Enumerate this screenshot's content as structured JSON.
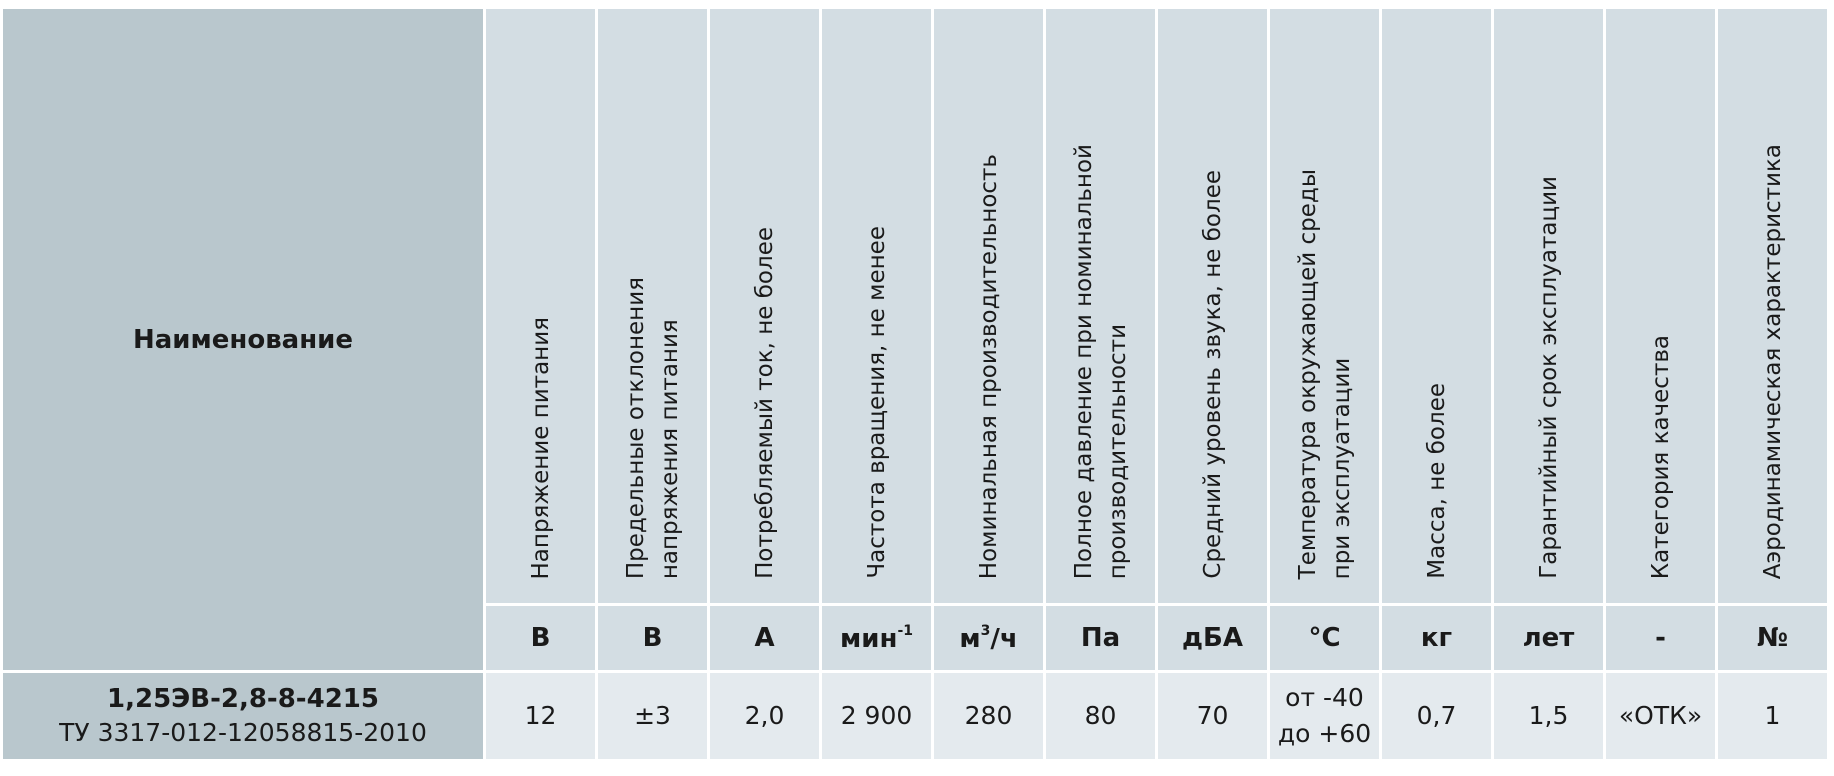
{
  "table": {
    "name_header": "Наименование",
    "columns": [
      {
        "header_lines": [
          "Напряжение питания"
        ],
        "unit": "В",
        "value_lines": [
          "12"
        ]
      },
      {
        "header_lines": [
          "Предельные отклонения",
          "напряжения питания"
        ],
        "unit": "В",
        "value_lines": [
          "±3"
        ]
      },
      {
        "header_lines": [
          "Потребляемый ток, не более"
        ],
        "unit": "А",
        "value_lines": [
          "2,0"
        ]
      },
      {
        "header_lines": [
          "Частота вращения, не менее"
        ],
        "unit_base": "мин",
        "unit_sup": "-1",
        "value_lines": [
          "2 900"
        ]
      },
      {
        "header_lines": [
          "Номинальная производительность"
        ],
        "unit_base": "м",
        "unit_sup": "3",
        "unit_tail": "/ч",
        "value_lines": [
          "280"
        ]
      },
      {
        "header_lines": [
          "Полное давление при номинальной",
          "производительности"
        ],
        "unit": "Па",
        "value_lines": [
          "80"
        ]
      },
      {
        "header_lines": [
          "Средний уровень звука, не более"
        ],
        "unit": "дБА",
        "value_lines": [
          "70"
        ]
      },
      {
        "header_lines": [
          "Температура окружающей среды",
          "при эксплуатации"
        ],
        "unit": "°C",
        "value_lines": [
          "от -40",
          "до +60"
        ]
      },
      {
        "header_lines": [
          "Масса, не более"
        ],
        "unit": "кг",
        "value_lines": [
          "0,7"
        ]
      },
      {
        "header_lines": [
          "Гарантийный срок эксплуатации"
        ],
        "unit": "лет",
        "value_lines": [
          "1,5"
        ]
      },
      {
        "header_lines": [
          "Категория качества"
        ],
        "unit": "-",
        "value_lines": [
          "«ОТК»"
        ]
      },
      {
        "header_lines": [
          "Аэродинамическая характеристика"
        ],
        "unit": "№",
        "value_lines": [
          "1"
        ]
      }
    ],
    "row": {
      "model": "1,25ЭВ-2,8-8-4215",
      "spec_code": "ТУ 3317-012-12058815-2010"
    }
  }
}
